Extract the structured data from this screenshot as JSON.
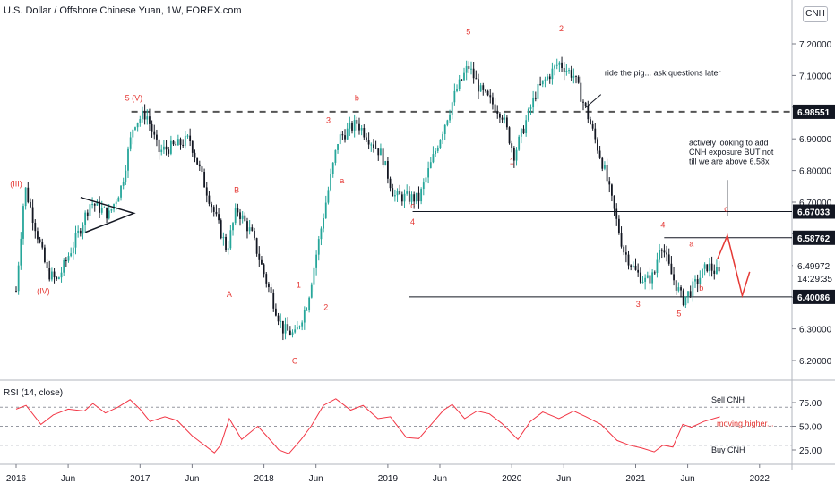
{
  "title": "U.S. Dollar / Offshore Chinese Yuan, 1W, FOREX.com",
  "currency_badge": "CNH",
  "rsi_title": "RSI (14, close)",
  "colors": {
    "up": "#26a69a",
    "down": "#131722",
    "wave": "#e53935",
    "rsi": "#f23645",
    "grid": "#e0e3eb"
  },
  "chart_data": [
    {
      "type": "candlestick",
      "ylim": [
        6.15,
        7.3
      ],
      "yticks": [
        "7.20000",
        "7.10000",
        "7.00000",
        "6.90000",
        "6.80000",
        "6.70000",
        "6.60000",
        "6.50000",
        "6.40000",
        "6.30000",
        "6.20000"
      ],
      "xticks": [
        "2016",
        "Jun",
        "2017",
        "Jun",
        "2018",
        "Jun",
        "2019",
        "Jun",
        "2020",
        "Jun",
        "2021",
        "Jun",
        "2022"
      ],
      "path": [
        [
          2016.0,
          6.42
        ],
        [
          2016.07,
          6.75
        ],
        [
          2016.25,
          6.48
        ],
        [
          2016.33,
          6.45
        ],
        [
          2016.5,
          6.6
        ],
        [
          2016.6,
          6.7
        ],
        [
          2016.75,
          6.66
        ],
        [
          2016.85,
          6.75
        ],
        [
          2016.95,
          6.95
        ],
        [
          2017.05,
          6.98
        ],
        [
          2017.15,
          6.86
        ],
        [
          2017.3,
          6.88
        ],
        [
          2017.4,
          6.9
        ],
        [
          2017.5,
          6.78
        ],
        [
          2017.7,
          6.55
        ],
        [
          2017.78,
          6.68
        ],
        [
          2017.9,
          6.6
        ],
        [
          2018.02,
          6.45
        ],
        [
          2018.15,
          6.3
        ],
        [
          2018.25,
          6.28
        ],
        [
          2018.35,
          6.38
        ],
        [
          2018.5,
          6.7
        ],
        [
          2018.6,
          6.9
        ],
        [
          2018.75,
          6.95
        ],
        [
          2018.95,
          6.85
        ],
        [
          2019.05,
          6.72
        ],
        [
          2019.25,
          6.71
        ],
        [
          2019.4,
          6.88
        ],
        [
          2019.55,
          7.05
        ],
        [
          2019.65,
          7.13
        ],
        [
          2019.75,
          7.05
        ],
        [
          2019.92,
          6.98
        ],
        [
          2020.02,
          6.85
        ],
        [
          2020.2,
          7.05
        ],
        [
          2020.38,
          7.14
        ],
        [
          2020.5,
          7.1
        ],
        [
          2020.6,
          6.99
        ],
        [
          2020.75,
          6.8
        ],
        [
          2020.9,
          6.55
        ],
        [
          2021.0,
          6.48
        ],
        [
          2021.08,
          6.45
        ],
        [
          2021.15,
          6.47
        ],
        [
          2021.2,
          6.58
        ],
        [
          2021.28,
          6.48
        ],
        [
          2021.38,
          6.39
        ],
        [
          2021.48,
          6.44
        ],
        [
          2021.58,
          6.5
        ],
        [
          2021.68,
          6.47
        ]
      ],
      "horizontal_levels": [
        6.98551,
        6.67033,
        6.58762,
        6.40086
      ],
      "price_labels": [
        "6.98551",
        "6.67033",
        "6.58762",
        "6.49972",
        "14:29:35",
        "6.40086"
      ],
      "wave_labels": [
        "(III)",
        "(IV)",
        "5 (V)",
        "A",
        "B",
        "C",
        "1",
        "2",
        "3",
        "b",
        "a",
        "c",
        "4",
        "5",
        "2",
        "1",
        "3",
        "4",
        "5",
        "a",
        "b",
        "c"
      ],
      "annotations": [
        "ride the pig... ask questions later",
        "actively looking to add",
        "CNH exposure BUT not",
        "till we are above 6.58x"
      ]
    },
    {
      "type": "line",
      "name": "RSI (14, close)",
      "ylim": [
        15,
        85
      ],
      "yticks": [
        "75.00",
        "50.00",
        "25.00"
      ],
      "reference_lines": [
        70,
        50,
        30
      ],
      "x": [
        2016.0,
        2016.08,
        2016.2,
        2016.3,
        2016.42,
        2016.55,
        2016.62,
        2016.72,
        2016.82,
        2016.92,
        2017.0,
        2017.08,
        2017.2,
        2017.3,
        2017.42,
        2017.5,
        2017.6,
        2017.65,
        2017.72,
        2017.82,
        2017.95,
        2018.02,
        2018.12,
        2018.2,
        2018.3,
        2018.38,
        2018.48,
        2018.58,
        2018.7,
        2018.8,
        2018.92,
        2019.02,
        2019.15,
        2019.25,
        2019.35,
        2019.45,
        2019.52,
        2019.62,
        2019.72,
        2019.82,
        2019.92,
        2020.05,
        2020.15,
        2020.25,
        2020.38,
        2020.5,
        2020.6,
        2020.72,
        2020.85,
        2020.95,
        2021.05,
        2021.15,
        2021.22,
        2021.3,
        2021.38,
        2021.45,
        2021.55,
        2021.68
      ],
      "values": [
        68,
        72,
        52,
        62,
        68,
        66,
        74,
        64,
        70,
        78,
        68,
        55,
        60,
        56,
        40,
        32,
        22,
        30,
        58,
        36,
        50,
        40,
        25,
        21,
        36,
        50,
        72,
        79,
        67,
        72,
        58,
        60,
        38,
        37,
        52,
        67,
        73,
        58,
        66,
        63,
        53,
        36,
        55,
        65,
        58,
        66,
        60,
        52,
        35,
        30,
        27,
        23,
        30,
        28,
        52,
        49,
        55,
        60
      ],
      "labels": [
        "Sell CNH",
        "moving higher...",
        "Buy CNH"
      ]
    }
  ]
}
